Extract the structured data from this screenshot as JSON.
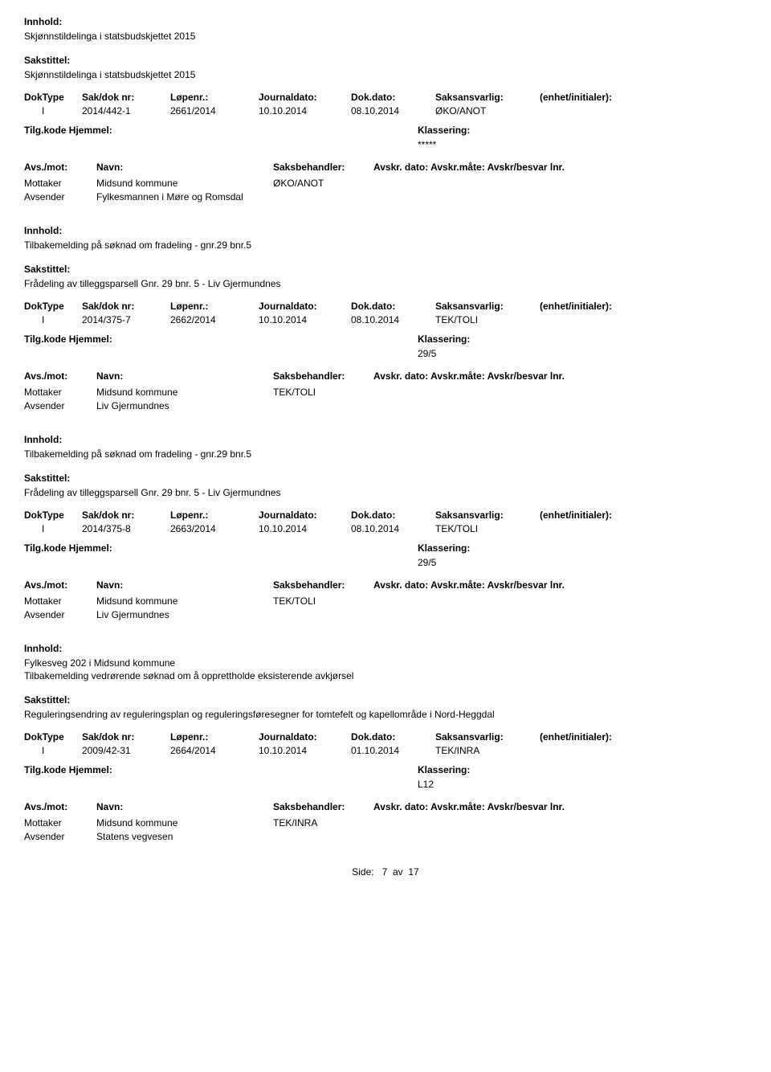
{
  "labels": {
    "innhold": "Innhold:",
    "sakstittel": "Sakstittel:",
    "doktype": "DokType",
    "sakdok": "Sak/dok nr:",
    "lopenr": "Løpenr.:",
    "journaldato": "Journaldato:",
    "dokdato": "Dok.dato:",
    "saksansvarlig": "Saksansvarlig:",
    "enhet": "(enhet/initialer):",
    "tilgkode": "Tilg.kode",
    "hjemmel": "Hjemmel:",
    "klassering": "Klassering:",
    "avsmot": "Avs./mot:",
    "navn": "Navn:",
    "saksbehandler": "Saksbehandler:",
    "avskrfull": "Avskr. dato: Avskr.måte: Avskr/besvar lnr.",
    "mottaker": "Mottaker",
    "avsender": "Avsender"
  },
  "records": [
    {
      "innhold": [
        "Skjønnstildelinga i statsbudskjettet 2015"
      ],
      "sakstittel": "Skjønnstildelinga i statsbudskjettet 2015",
      "doktype": "I",
      "sakdok": "2014/442-1",
      "lopenr": "2661/2014",
      "journaldato": "10.10.2014",
      "dokdato": "08.10.2014",
      "saksansvarlig": "ØKO/ANOT",
      "klassering": "*****",
      "mottaker": "Midsund kommune",
      "avsender": "Fylkesmannen i Møre og Romsdal",
      "saksbehandler": "ØKO/ANOT"
    },
    {
      "innhold": [
        "Tilbakemelding på søknad om fradeling -  gnr.29 bnr.5"
      ],
      "sakstittel": "Frådeling av tilleggsparsell Gnr. 29 bnr. 5 - Liv Gjermundnes",
      "doktype": "I",
      "sakdok": "2014/375-7",
      "lopenr": "2662/2014",
      "journaldato": "10.10.2014",
      "dokdato": "08.10.2014",
      "saksansvarlig": "TEK/TOLI",
      "klassering": "29/5",
      "mottaker": "Midsund kommune",
      "avsender": "Liv Gjermundnes",
      "saksbehandler": "TEK/TOLI"
    },
    {
      "innhold": [
        "Tilbakemelding på søknad om fradeling -  gnr.29 bnr.5"
      ],
      "sakstittel": "Frådeling av tilleggsparsell Gnr. 29 bnr. 5 - Liv Gjermundnes",
      "doktype": "I",
      "sakdok": "2014/375-8",
      "lopenr": "2663/2014",
      "journaldato": "10.10.2014",
      "dokdato": "08.10.2014",
      "saksansvarlig": "TEK/TOLI",
      "klassering": "29/5",
      "mottaker": "Midsund kommune",
      "avsender": "Liv Gjermundnes",
      "saksbehandler": "TEK/TOLI"
    },
    {
      "innhold": [
        "Fylkesveg 202 i Midsund kommune",
        "Tilbakemelding vedrørende søknad om å opprettholde eksisterende avkjørsel"
      ],
      "sakstittel": "Reguleringsendring  av reguleringsplan og  reguleringsføresegner for tomtefelt og kapellområde i Nord-Heggdal",
      "doktype": "I",
      "sakdok": "2009/42-31",
      "lopenr": "2664/2014",
      "journaldato": "10.10.2014",
      "dokdato": "01.10.2014",
      "saksansvarlig": "TEK/INRA",
      "klassering": "L12",
      "mottaker": "Midsund kommune",
      "avsender": "Statens vegvesen",
      "saksbehandler": "TEK/INRA"
    }
  ],
  "footer": {
    "side_label": "Side:",
    "page": "7",
    "av": "av",
    "total": "17"
  }
}
